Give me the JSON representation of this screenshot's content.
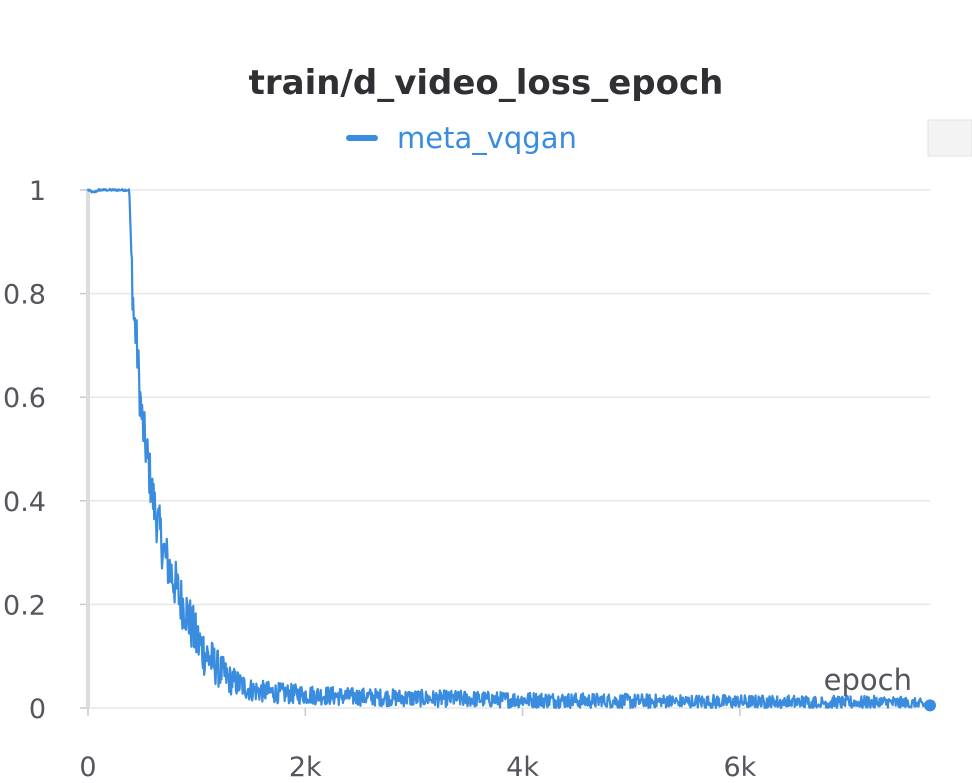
{
  "chart_data": {
    "type": "line",
    "title": "train/d_video_loss_epoch",
    "xlabel": "epoch",
    "ylabel": "",
    "xlim": [
      0,
      7750
    ],
    "ylim": [
      0,
      1
    ],
    "x_ticks": [
      0,
      2000,
      4000,
      6000
    ],
    "x_tick_labels": [
      "0",
      "2k",
      "4k",
      "6k"
    ],
    "y_ticks": [
      0,
      0.2,
      0.4,
      0.6,
      0.8,
      1
    ],
    "y_tick_labels": [
      "0",
      "0.2",
      "0.4",
      "0.6",
      "0.8",
      "1"
    ],
    "grid": true,
    "legend_position": "top-center",
    "series": [
      {
        "name": "meta_vqgan",
        "color": "#3a8cde",
        "x": [
          0,
          50,
          100,
          200,
          300,
          380,
          400,
          420,
          450,
          480,
          500,
          550,
          600,
          650,
          700,
          750,
          800,
          850,
          900,
          950,
          1000,
          1100,
          1200,
          1300,
          1400,
          1500,
          1600,
          1700,
          1800,
          2000,
          2200,
          2400,
          2600,
          2800,
          3000,
          3200,
          3400,
          3600,
          3800,
          4000,
          4300,
          4600,
          5000,
          5400,
          5800,
          6200,
          6600,
          7000,
          7400,
          7750
        ],
        "values": [
          1.0,
          0.995,
          1.0,
          1.0,
          1.0,
          1.0,
          0.87,
          0.76,
          0.7,
          0.6,
          0.55,
          0.48,
          0.4,
          0.35,
          0.3,
          0.27,
          0.24,
          0.21,
          0.19,
          0.16,
          0.13,
          0.1,
          0.075,
          0.055,
          0.045,
          0.035,
          0.032,
          0.03,
          0.028,
          0.026,
          0.024,
          0.022,
          0.021,
          0.02,
          0.019,
          0.018,
          0.018,
          0.017,
          0.016,
          0.016,
          0.015,
          0.014,
          0.013,
          0.012,
          0.012,
          0.011,
          0.011,
          0.01,
          0.01,
          0.005
        ]
      }
    ]
  }
}
